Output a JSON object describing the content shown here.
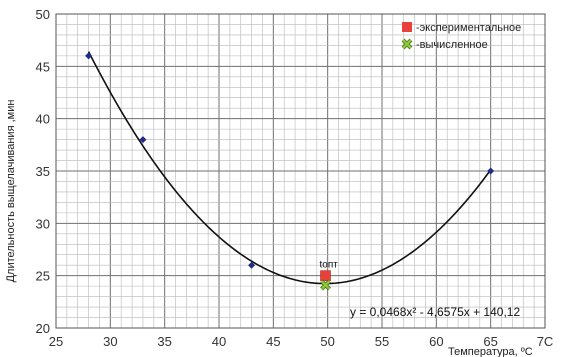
{
  "chart_data": {
    "type": "scatter",
    "xlabel": "Температура, ºС",
    "ylabel": "Длительность выщелачивания ,мин",
    "xlim": [
      25,
      70
    ],
    "ylim": [
      20,
      50
    ],
    "xticks": [
      "25",
      "30",
      "35",
      "40",
      "45",
      "50",
      "55",
      "60",
      "65",
      "7С"
    ],
    "yticks": [
      "20",
      "25",
      "30",
      "35",
      "40",
      "45",
      "50"
    ],
    "grid": true,
    "legend_position": "top-right",
    "series": [
      {
        "points": [
          {
            "x": 28,
            "y": 46
          },
          {
            "x": 33,
            "y": 38
          },
          {
            "x": 43,
            "y": 26
          },
          {
            "x": 65,
            "y": 35
          }
        ],
        "color": "#1f2d8a"
      },
      {
        "name": "-экспериментальное",
        "points": [
          {
            "x": 49.8,
            "y": 25
          }
        ],
        "color": "#e8403a"
      },
      {
        "name": "-вычисленное",
        "points": [
          {
            "x": 49.8,
            "y": 24.1
          }
        ],
        "color": "#8fc93a"
      }
    ],
    "fit": {
      "equation": "y = 0,0468x² - 4,6575x + 140,12",
      "a": 0.0468,
      "b": -4.6575,
      "c": 140.12,
      "x_range": [
        28,
        65
      ]
    },
    "annotation": "tопт"
  }
}
